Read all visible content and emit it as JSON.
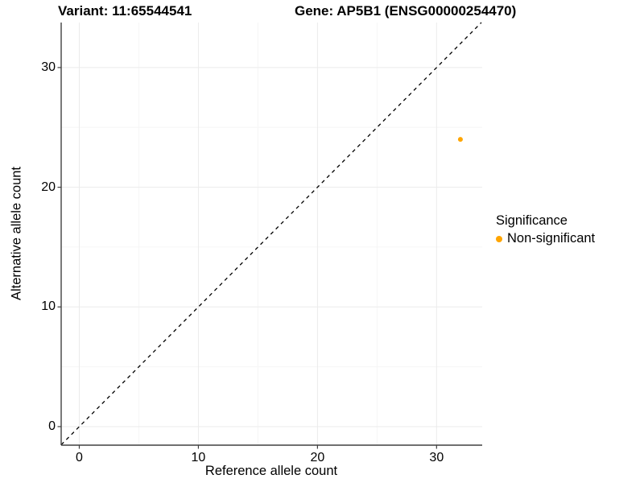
{
  "chart_data": {
    "type": "scatter",
    "title_variant": "Variant: 11:65544541",
    "title_gene": "Gene: AP5B1 (ENSG00000254470)",
    "xlabel": "Reference allele count",
    "ylabel": "Alternative allele count",
    "xlim": [
      -1.52,
      33.83
    ],
    "ylim": [
      -1.55,
      33.76
    ],
    "x_ticks": [
      0,
      10,
      20,
      30
    ],
    "y_ticks": [
      0,
      10,
      20,
      30
    ],
    "x_minor_ticks": [
      5,
      15,
      25
    ],
    "y_minor_ticks": [
      5,
      15,
      25
    ],
    "grid": true,
    "identity_line": {
      "style": "dashed",
      "color": "#000000",
      "from": -1.52,
      "to": 33.76
    },
    "points": [
      {
        "x": 32,
        "y": 24,
        "series": "Non-significant"
      }
    ],
    "marker_diameter_px": 6,
    "legend": {
      "title": "Significance",
      "position": "right",
      "entries": [
        {
          "label": "Non-significant",
          "color": "#FFA500"
        }
      ]
    },
    "colors": {
      "point": "#FFA500",
      "axis": "#404040",
      "grid_major": "#ebebeb",
      "grid_minor": "#f6f6f6",
      "background": "#ffffff",
      "text": "#000000"
    }
  }
}
